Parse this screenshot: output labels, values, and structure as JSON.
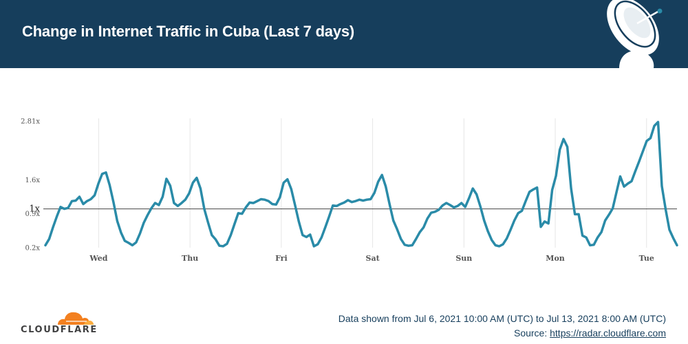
{
  "header": {
    "title": "Change in Internet Traffic in Cuba (Last 7 days)"
  },
  "footer": {
    "logo_text": "CLOUDFLARE",
    "data_range": "Data shown from Jul 6, 2021 10:00 AM (UTC) to Jul 13, 2021 8:00 AM (UTC)",
    "source_label": "Source:",
    "source_link": "https://radar.cloudflare.com"
  },
  "colors": {
    "header_bg": "#163e5c",
    "line": "#2a8ba8",
    "logo_orange": "#f38020"
  },
  "chart_data": {
    "type": "line",
    "title": "Change in Internet Traffic in Cuba (Last 7 days)",
    "x_range_hours": [
      0,
      166
    ],
    "y_ticks": [
      {
        "value": 0.2,
        "label": "0.2x"
      },
      {
        "value": 0.9,
        "label": "0.9x"
      },
      {
        "value": 1.6,
        "label": "1.6x"
      },
      {
        "value": 2.81,
        "label": "2.81x"
      }
    ],
    "ylim": [
      0.2,
      2.81
    ],
    "reference_line": {
      "value": 1.0,
      "label": "1x"
    },
    "x_ticks": [
      {
        "hour": 14,
        "label": "Wed"
      },
      {
        "hour": 38,
        "label": "Thu"
      },
      {
        "hour": 62,
        "label": "Fri"
      },
      {
        "hour": 86,
        "label": "Sat"
      },
      {
        "hour": 110,
        "label": "Sun"
      },
      {
        "hour": 134,
        "label": "Mon"
      },
      {
        "hour": 158,
        "label": "Tue"
      }
    ],
    "grid": "vertical",
    "series": [
      {
        "values": [
          0.25,
          0.38,
          0.62,
          0.84,
          1.04,
          1.0,
          1.02,
          1.16,
          1.17,
          1.25,
          1.1,
          1.16,
          1.2,
          1.28,
          1.52,
          1.72,
          1.75,
          1.49,
          1.14,
          0.75,
          0.51,
          0.34,
          0.3,
          0.25,
          0.31,
          0.49,
          0.71,
          0.87,
          1.01,
          1.12,
          1.08,
          1.25,
          1.62,
          1.48,
          1.12,
          1.06,
          1.12,
          1.19,
          1.32,
          1.54,
          1.64,
          1.42,
          1.0,
          0.72,
          0.46,
          0.37,
          0.24,
          0.23,
          0.28,
          0.46,
          0.69,
          0.91,
          0.9,
          1.03,
          1.13,
          1.12,
          1.16,
          1.2,
          1.19,
          1.16,
          1.1,
          1.09,
          1.24,
          1.54,
          1.61,
          1.41,
          1.08,
          0.74,
          0.46,
          0.42,
          0.47,
          0.23,
          0.27,
          0.41,
          0.62,
          0.84,
          1.07,
          1.06,
          1.1,
          1.13,
          1.18,
          1.14,
          1.16,
          1.19,
          1.17,
          1.19,
          1.2,
          1.33,
          1.56,
          1.7,
          1.46,
          1.1,
          0.76,
          0.58,
          0.38,
          0.26,
          0.24,
          0.25,
          0.38,
          0.52,
          0.62,
          0.8,
          0.92,
          0.94,
          0.98,
          1.07,
          1.12,
          1.08,
          1.03,
          1.06,
          1.12,
          1.04,
          1.22,
          1.42,
          1.3,
          1.05,
          0.76,
          0.54,
          0.36,
          0.25,
          0.23,
          0.27,
          0.39,
          0.57,
          0.76,
          0.91,
          0.96,
          1.16,
          1.35,
          1.4,
          1.44,
          0.63,
          0.74,
          0.7,
          1.39,
          1.68,
          2.22,
          2.44,
          2.28,
          1.42,
          0.89,
          0.89,
          0.45,
          0.41,
          0.25,
          0.26,
          0.41,
          0.52,
          0.76,
          0.88,
          1.01,
          1.34,
          1.67,
          1.46,
          1.52,
          1.57,
          1.78,
          1.98,
          2.19,
          2.4,
          2.46,
          2.71,
          2.79,
          1.47,
          0.99,
          0.57,
          0.4,
          0.25
        ]
      }
    ]
  }
}
